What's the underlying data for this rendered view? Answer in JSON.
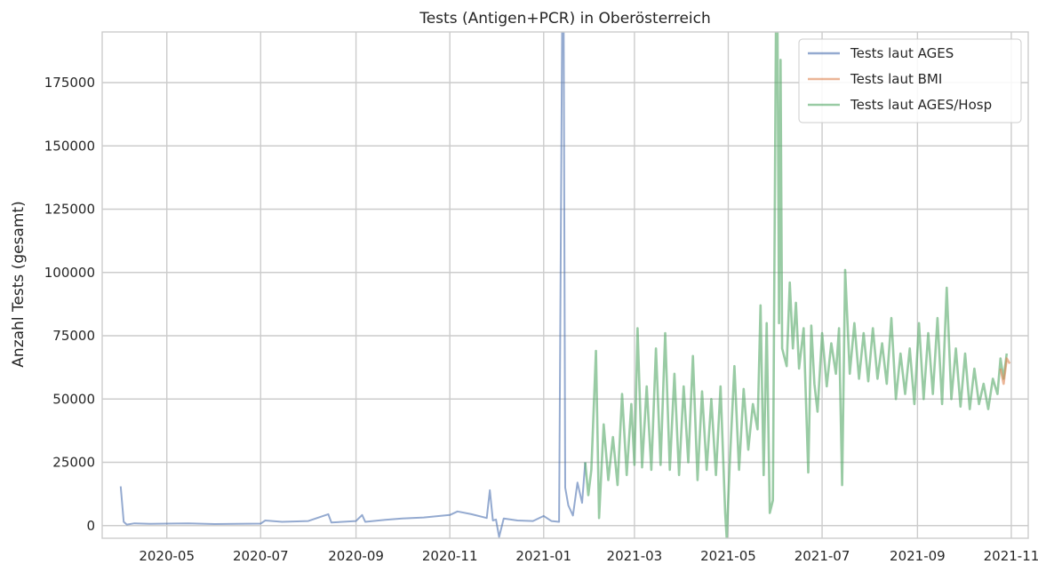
{
  "chart_data": {
    "type": "line",
    "title": "Tests (Antigen+PCR) in Oberösterreich",
    "xlabel": "",
    "ylabel": "Anzahl Tests (gesamt)",
    "xlim": [
      "2020-03-20",
      "2021-11-12"
    ],
    "ylim": [
      -5000,
      195000
    ],
    "x_ticks": [
      "2020-05-01",
      "2020-07-01",
      "2020-09-01",
      "2020-11-01",
      "2021-01-01",
      "2021-03-01",
      "2021-05-01",
      "2021-07-01",
      "2021-09-01",
      "2021-11-01"
    ],
    "x_tick_labels": [
      "2020-05",
      "2020-07",
      "2020-09",
      "2020-11",
      "2021-01",
      "2021-03",
      "2021-05",
      "2021-07",
      "2021-09",
      "2021-11"
    ],
    "y_ticks": [
      0,
      25000,
      50000,
      75000,
      100000,
      125000,
      150000,
      175000
    ],
    "y_tick_labels": [
      "0",
      "25000",
      "50000",
      "75000",
      "100000",
      "125000",
      "150000",
      "175000"
    ],
    "grid": true,
    "legend_position": "top-right",
    "series": [
      {
        "name": "Tests laut AGES",
        "color": "#4c72b0",
        "points": [
          [
            "2020-04-01",
            15500
          ],
          [
            "2020-04-03",
            1500
          ],
          [
            "2020-04-05",
            400
          ],
          [
            "2020-04-10",
            900
          ],
          [
            "2020-04-20",
            700
          ],
          [
            "2020-05-01",
            800
          ],
          [
            "2020-05-15",
            900
          ],
          [
            "2020-06-01",
            600
          ],
          [
            "2020-06-15",
            700
          ],
          [
            "2020-07-01",
            800
          ],
          [
            "2020-07-04",
            2000
          ],
          [
            "2020-07-15",
            1500
          ],
          [
            "2020-08-01",
            1800
          ],
          [
            "2020-08-14",
            4500
          ],
          [
            "2020-08-16",
            1200
          ],
          [
            "2020-09-01",
            1800
          ],
          [
            "2020-09-05",
            4200
          ],
          [
            "2020-09-07",
            1500
          ],
          [
            "2020-09-20",
            2300
          ],
          [
            "2020-10-01",
            2800
          ],
          [
            "2020-10-15",
            3200
          ],
          [
            "2020-11-01",
            4200
          ],
          [
            "2020-11-06",
            5600
          ],
          [
            "2020-11-15",
            4500
          ],
          [
            "2020-11-25",
            3000
          ],
          [
            "2020-11-27",
            14000
          ],
          [
            "2020-11-29",
            2000
          ],
          [
            "2020-12-01",
            2400
          ],
          [
            "2020-12-03",
            -4500
          ],
          [
            "2020-12-06",
            2800
          ],
          [
            "2020-12-15",
            2000
          ],
          [
            "2020-12-25",
            1800
          ],
          [
            "2021-01-01",
            3800
          ],
          [
            "2021-01-06",
            1800
          ],
          [
            "2021-01-11",
            1500
          ],
          [
            "2021-01-13",
            195000
          ],
          [
            "2021-01-14",
            195000
          ],
          [
            "2021-01-15",
            15000
          ],
          [
            "2021-01-17",
            8000
          ],
          [
            "2021-01-20",
            4000
          ],
          [
            "2021-01-23",
            17000
          ],
          [
            "2021-01-26",
            9000
          ],
          [
            "2021-01-28",
            25000
          ]
        ]
      },
      {
        "name": "Tests laut BMI",
        "color": "#dd8452",
        "points": [
          [
            "2021-10-25",
            62000
          ],
          [
            "2021-10-27",
            56000
          ],
          [
            "2021-10-29",
            66000
          ],
          [
            "2021-10-31",
            64000
          ]
        ]
      },
      {
        "name": "Tests laut AGES/Hosp",
        "color": "#55a868",
        "points": [
          [
            "2021-01-28",
            25000
          ],
          [
            "2021-01-30",
            12000
          ],
          [
            "2021-02-01",
            22000
          ],
          [
            "2021-02-04",
            69000
          ],
          [
            "2021-02-06",
            3000
          ],
          [
            "2021-02-09",
            40000
          ],
          [
            "2021-02-12",
            18000
          ],
          [
            "2021-02-15",
            35000
          ],
          [
            "2021-02-18",
            16000
          ],
          [
            "2021-02-21",
            52000
          ],
          [
            "2021-02-24",
            20000
          ],
          [
            "2021-02-27",
            48000
          ],
          [
            "2021-03-01",
            24000
          ],
          [
            "2021-03-03",
            78000
          ],
          [
            "2021-03-06",
            23000
          ],
          [
            "2021-03-09",
            55000
          ],
          [
            "2021-03-12",
            22000
          ],
          [
            "2021-03-15",
            70000
          ],
          [
            "2021-03-18",
            24000
          ],
          [
            "2021-03-21",
            76000
          ],
          [
            "2021-03-24",
            22000
          ],
          [
            "2021-03-27",
            60000
          ],
          [
            "2021-03-30",
            20000
          ],
          [
            "2021-04-02",
            55000
          ],
          [
            "2021-04-05",
            25000
          ],
          [
            "2021-04-08",
            67000
          ],
          [
            "2021-04-11",
            18000
          ],
          [
            "2021-04-14",
            53000
          ],
          [
            "2021-04-17",
            22000
          ],
          [
            "2021-04-20",
            50000
          ],
          [
            "2021-04-23",
            20000
          ],
          [
            "2021-04-26",
            55000
          ],
          [
            "2021-04-29",
            5000
          ],
          [
            "2021-04-30",
            -5000
          ],
          [
            "2021-05-02",
            25000
          ],
          [
            "2021-05-05",
            63000
          ],
          [
            "2021-05-08",
            22000
          ],
          [
            "2021-05-11",
            54000
          ],
          [
            "2021-05-14",
            30000
          ],
          [
            "2021-05-17",
            48000
          ],
          [
            "2021-05-20",
            38000
          ],
          [
            "2021-05-22",
            87000
          ],
          [
            "2021-05-24",
            20000
          ],
          [
            "2021-05-26",
            80000
          ],
          [
            "2021-05-28",
            5000
          ],
          [
            "2021-05-30",
            10000
          ],
          [
            "2021-06-01",
            195000
          ],
          [
            "2021-06-02",
            195000
          ],
          [
            "2021-06-03",
            80000
          ],
          [
            "2021-06-04",
            184000
          ],
          [
            "2021-06-05",
            70000
          ],
          [
            "2021-06-08",
            63000
          ],
          [
            "2021-06-10",
            96000
          ],
          [
            "2021-06-12",
            70000
          ],
          [
            "2021-06-14",
            88000
          ],
          [
            "2021-06-16",
            62000
          ],
          [
            "2021-06-19",
            78000
          ],
          [
            "2021-06-22",
            21000
          ],
          [
            "2021-06-24",
            79000
          ],
          [
            "2021-06-26",
            56000
          ],
          [
            "2021-06-28",
            45000
          ],
          [
            "2021-07-01",
            76000
          ],
          [
            "2021-07-04",
            55000
          ],
          [
            "2021-07-07",
            72000
          ],
          [
            "2021-07-10",
            60000
          ],
          [
            "2021-07-12",
            78000
          ],
          [
            "2021-07-14",
            16000
          ],
          [
            "2021-07-16",
            101000
          ],
          [
            "2021-07-19",
            60000
          ],
          [
            "2021-07-22",
            80000
          ],
          [
            "2021-07-25",
            58000
          ],
          [
            "2021-07-28",
            76000
          ],
          [
            "2021-07-31",
            57000
          ],
          [
            "2021-08-03",
            78000
          ],
          [
            "2021-08-06",
            58000
          ],
          [
            "2021-08-09",
            72000
          ],
          [
            "2021-08-12",
            56000
          ],
          [
            "2021-08-15",
            82000
          ],
          [
            "2021-08-18",
            50000
          ],
          [
            "2021-08-21",
            68000
          ],
          [
            "2021-08-24",
            52000
          ],
          [
            "2021-08-27",
            70000
          ],
          [
            "2021-08-30",
            48000
          ],
          [
            "2021-09-02",
            80000
          ],
          [
            "2021-09-05",
            50000
          ],
          [
            "2021-09-08",
            76000
          ],
          [
            "2021-09-11",
            52000
          ],
          [
            "2021-09-14",
            82000
          ],
          [
            "2021-09-17",
            48000
          ],
          [
            "2021-09-20",
            94000
          ],
          [
            "2021-09-23",
            50000
          ],
          [
            "2021-09-26",
            70000
          ],
          [
            "2021-09-29",
            47000
          ],
          [
            "2021-10-02",
            68000
          ],
          [
            "2021-10-05",
            46000
          ],
          [
            "2021-10-08",
            62000
          ],
          [
            "2021-10-11",
            48000
          ],
          [
            "2021-10-14",
            56000
          ],
          [
            "2021-10-17",
            46000
          ],
          [
            "2021-10-20",
            58000
          ],
          [
            "2021-10-23",
            52000
          ],
          [
            "2021-10-25",
            66000
          ],
          [
            "2021-10-27",
            58000
          ],
          [
            "2021-10-29",
            68000
          ]
        ]
      }
    ]
  }
}
